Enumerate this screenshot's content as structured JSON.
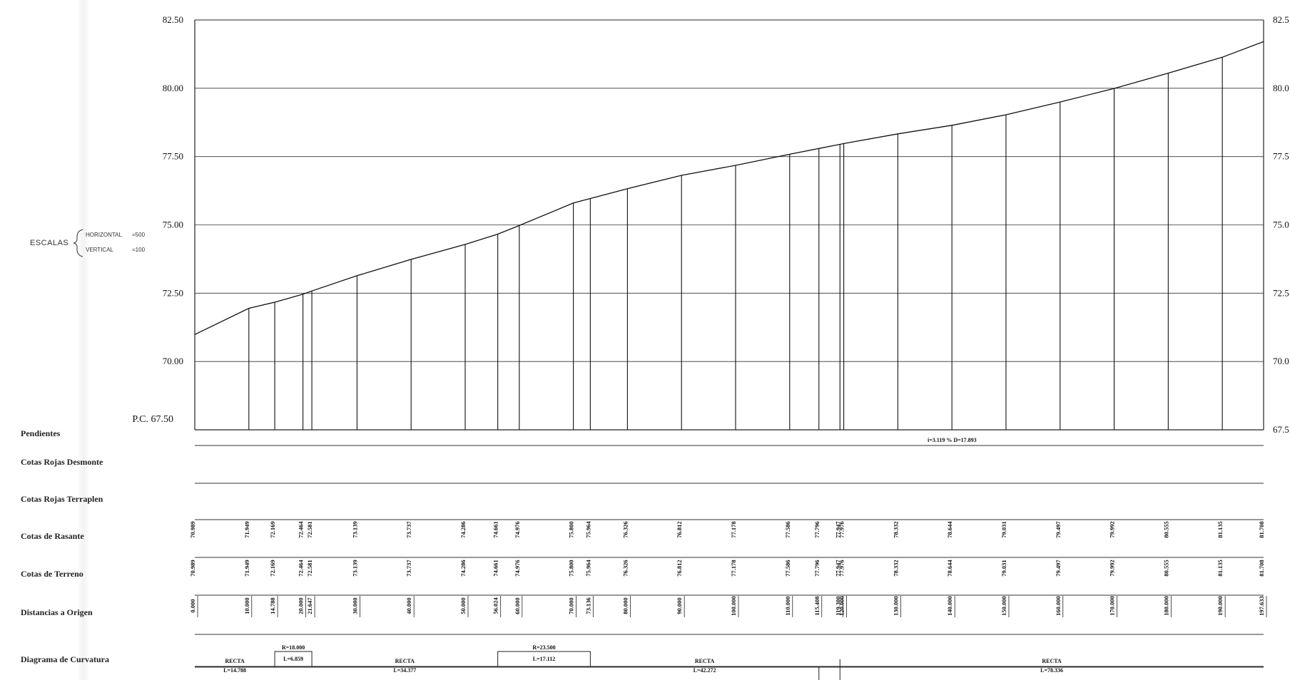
{
  "profile": {
    "pc_label": "P.C. 67.50",
    "scales": {
      "label": "ESCALAS",
      "horizontal_label": "HORIZONTAL",
      "horizontal_value": "=500",
      "vertical_label": "VERTICAL",
      "vertical_value": "=100"
    },
    "left_axis_ticks": [
      "82.50",
      "80.00",
      "77.50",
      "75.00",
      "72.50",
      "70.00"
    ],
    "right_axis_ticks": [
      "82.5",
      "80.0",
      "77.5",
      "75.0",
      "72.5",
      "70.0",
      "67.5"
    ],
    "slope_annotation": "i=3.119 % D=17.893",
    "rows": {
      "pendientes": "Pendientes",
      "cotas_rojas_desmonte": "Cotas Rojas Desmonte",
      "cotas_rojas_terraplen": "Cotas Rojas Terraplen",
      "cotas_rasante": "Cotas de Rasante",
      "cotas_terreno": "Cotas de Terreno",
      "distancias_origen": "Distancias a Origen",
      "diagrama_curvatura": "Diagrama de Curvatura"
    },
    "curvature": [
      {
        "kind": "RECTA",
        "length_label": "L=14.788",
        "from": 0,
        "to": 14.788
      },
      {
        "kind": "CURVA",
        "radius_label": "R=18.000",
        "length_label": "L=6.859",
        "from": 14.788,
        "to": 21.647
      },
      {
        "kind": "RECTA",
        "length_label": "L=34.377",
        "from": 21.647,
        "to": 56.024
      },
      {
        "kind": "CURVA",
        "radius_label": "R=23.500",
        "length_label": "L=17.112",
        "from": 56.024,
        "to": 73.136
      },
      {
        "kind": "RECTA",
        "length_label": "L=42.272",
        "from": 73.136,
        "to": 115.408
      },
      {
        "kind": "RECTA",
        "length_label": "L=78.336",
        "from": 119.297,
        "to": 197.633
      }
    ]
  },
  "chart_data": {
    "type": "line",
    "title": "",
    "xlabel": "Distancias a Origen",
    "ylabel": "",
    "xlim": [
      0,
      197.633
    ],
    "ylim": [
      67.5,
      82.5
    ],
    "stations": [
      {
        "dist": 0.0,
        "dist_label": "0.000",
        "rasante": "70.989",
        "terreno": "70.989",
        "z": 70.989
      },
      {
        "dist": 10.0,
        "dist_label": "10.000",
        "rasante": "71.949",
        "terreno": "71.949",
        "z": 71.949
      },
      {
        "dist": 14.788,
        "dist_label": "14.788",
        "rasante": "72.169",
        "terreno": "72.169",
        "z": 72.169
      },
      {
        "dist": 20.0,
        "dist_label": "20.000",
        "rasante": "72.464",
        "terreno": "72.464",
        "z": 72.464
      },
      {
        "dist": 21.647,
        "dist_label": "21.647",
        "rasante": "72.581",
        "terreno": "72.581",
        "z": 72.581
      },
      {
        "dist": 30.0,
        "dist_label": "30.000",
        "rasante": "73.139",
        "terreno": "73.139",
        "z": 73.139
      },
      {
        "dist": 40.0,
        "dist_label": "40.000",
        "rasante": "73.737",
        "terreno": "73.737",
        "z": 73.737
      },
      {
        "dist": 50.0,
        "dist_label": "50.000",
        "rasante": "74.286",
        "terreno": "74.286",
        "z": 74.286
      },
      {
        "dist": 56.024,
        "dist_label": "56.024",
        "rasante": "74.661",
        "terreno": "74.661",
        "z": 74.661
      },
      {
        "dist": 60.0,
        "dist_label": "60.000",
        "rasante": "74.976",
        "terreno": "74.976",
        "z": 74.976
      },
      {
        "dist": 70.0,
        "dist_label": "70.000",
        "rasante": "75.800",
        "terreno": "75.800",
        "z": 75.8
      },
      {
        "dist": 73.136,
        "dist_label": "73.136",
        "rasante": "75.964",
        "terreno": "75.964",
        "z": 75.964
      },
      {
        "dist": 80.0,
        "dist_label": "80.000",
        "rasante": "76.326",
        "terreno": "76.326",
        "z": 76.326
      },
      {
        "dist": 90.0,
        "dist_label": "90.000",
        "rasante": "76.812",
        "terreno": "76.812",
        "z": 76.812
      },
      {
        "dist": 100.0,
        "dist_label": "100.000",
        "rasante": "77.178",
        "terreno": "77.178",
        "z": 77.178
      },
      {
        "dist": 110.0,
        "dist_label": "110.000",
        "rasante": "77.586",
        "terreno": "77.586",
        "z": 77.586
      },
      {
        "dist": 115.408,
        "dist_label": "115.408",
        "rasante": "77.796",
        "terreno": "77.796",
        "z": 77.796
      },
      {
        "dist": 119.3,
        "dist_label": "119.300",
        "rasante": "77.947",
        "terreno": "77.947",
        "z": 77.947
      },
      {
        "dist": 120.0,
        "dist_label": "120.000",
        "rasante": "77.976",
        "terreno": "77.976",
        "z": 77.976
      },
      {
        "dist": 130.0,
        "dist_label": "130.000",
        "rasante": "78.332",
        "terreno": "78.332",
        "z": 78.332
      },
      {
        "dist": 140.0,
        "dist_label": "140.000",
        "rasante": "78.644",
        "terreno": "78.644",
        "z": 78.644
      },
      {
        "dist": 150.0,
        "dist_label": "150.000",
        "rasante": "79.031",
        "terreno": "79.031",
        "z": 79.031
      },
      {
        "dist": 160.0,
        "dist_label": "160.000",
        "rasante": "79.497",
        "terreno": "79.497",
        "z": 79.497
      },
      {
        "dist": 170.0,
        "dist_label": "170.000",
        "rasante": "79.992",
        "terreno": "79.992",
        "z": 79.992
      },
      {
        "dist": 180.0,
        "dist_label": "180.000",
        "rasante": "80.555",
        "terreno": "80.555",
        "z": 80.555
      },
      {
        "dist": 190.0,
        "dist_label": "190.000",
        "rasante": "81.135",
        "terreno": "81.135",
        "z": 81.135
      },
      {
        "dist": 197.633,
        "dist_label": "197.633",
        "rasante": "81.708",
        "terreno": "81.708",
        "z": 81.708
      }
    ],
    "grid": true
  }
}
